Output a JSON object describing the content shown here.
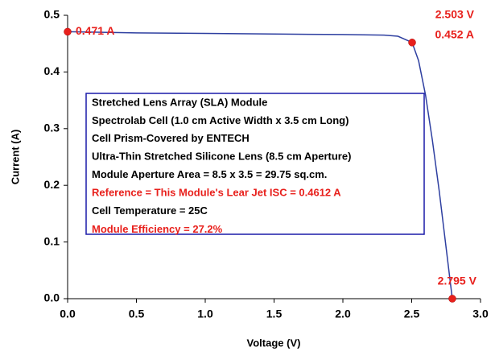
{
  "chart_data": {
    "type": "line",
    "xlabel": "Voltage (V)",
    "ylabel": "Current (A)",
    "x": [
      0,
      0.5,
      1.0,
      1.5,
      2.0,
      2.3,
      2.4,
      2.503,
      2.55,
      2.6,
      2.65,
      2.7,
      2.75,
      2.795
    ],
    "series": [
      {
        "color": "#2e3fa0",
        "values": [
          0.471,
          0.469,
          0.468,
          0.467,
          0.466,
          0.465,
          0.463,
          0.452,
          0.42,
          0.36,
          0.28,
          0.19,
          0.09,
          0
        ]
      }
    ],
    "markers": {
      "color": "#e8201c",
      "x": [
        0,
        2.503,
        2.795
      ],
      "y": [
        0.471,
        0.452,
        0
      ]
    },
    "annotations": [
      "0.471 A",
      "2.503 V",
      "0.452 A",
      "2.795 V"
    ],
    "textbox": {
      "border_color": "#1a1aa8",
      "lines": [
        {
          "text": "Stretched Lens Array (SLA) Module",
          "color": "#000000"
        },
        {
          "text": "Spectrolab Cell (1.0 cm Active Width x 3.5 cm Long)",
          "color": "#000000"
        },
        {
          "text": "Cell Prism-Covered by ENTECH",
          "color": "#000000"
        },
        {
          "text": "Ultra-Thin Stretched Silicone Lens (8.5 cm Aperture)",
          "color": "#000000"
        },
        {
          "text": "Module Aperture Area = 8.5 x 3.5 = 29.75 sq.cm.",
          "color": "#000000"
        },
        {
          "text": "Reference = This Module's Lear Jet ISC = 0.4612 A",
          "color": "#e8201c"
        },
        {
          "text": "Cell Temperature = 25C",
          "color": "#000000"
        },
        {
          "text": "Module Efficiency = 27.2%",
          "color": "#e8201c"
        }
      ]
    },
    "xlim": [
      0,
      3.0
    ],
    "ylim": [
      0,
      0.5
    ],
    "xticks": [
      {
        "value": 0,
        "label": "0.0"
      },
      {
        "value": 0.5,
        "label": "0.5"
      },
      {
        "value": 1.0,
        "label": "1.0"
      },
      {
        "value": 1.5,
        "label": "1.5"
      },
      {
        "value": 2.0,
        "label": "2.0"
      },
      {
        "value": 2.5,
        "label": "2.5"
      },
      {
        "value": 3.0,
        "label": "3.0"
      }
    ],
    "yticks": [
      {
        "value": 0,
        "label": "0.0"
      },
      {
        "value": 0.1,
        "label": "0.1"
      },
      {
        "value": 0.2,
        "label": "0.2"
      },
      {
        "value": 0.3,
        "label": "0.3"
      },
      {
        "value": 0.4,
        "label": "0.4"
      },
      {
        "value": 0.5,
        "label": "0.5"
      }
    ]
  }
}
